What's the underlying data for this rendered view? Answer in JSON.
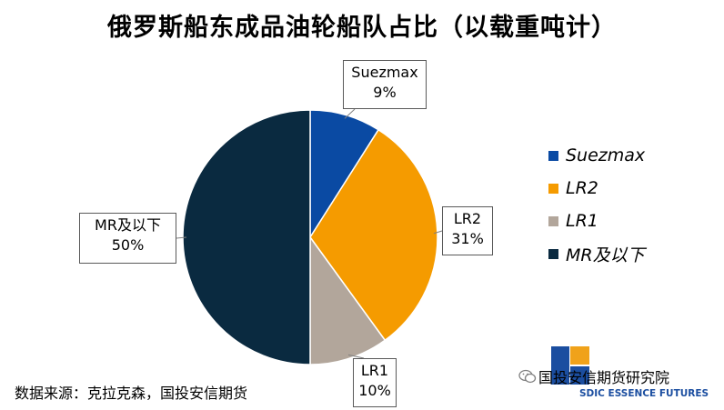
{
  "chart_data": {
    "type": "pie",
    "title": "俄罗斯船东成品油轮船队占比（以载重吨计）",
    "slices": [
      {
        "label": "Suezmax",
        "value": 9,
        "display": "9%",
        "color": "#0a4aa3"
      },
      {
        "label": "LR2",
        "value": 31,
        "display": "31%",
        "color": "#f59b00"
      },
      {
        "label": "LR1",
        "value": 10,
        "display": "10%",
        "color": "#b2a69b"
      },
      {
        "label": "MR及以下",
        "value": 50,
        "display": "50%",
        "color": "#0a2a40"
      }
    ],
    "legend_position": "right"
  },
  "source": "数据来源：克拉克森，国投安信期货",
  "watermark": {
    "name": "国投安信期货研究院",
    "english": "SDIC ESSENCE FUTURES",
    "wechat_icon": "wechat-icon"
  }
}
